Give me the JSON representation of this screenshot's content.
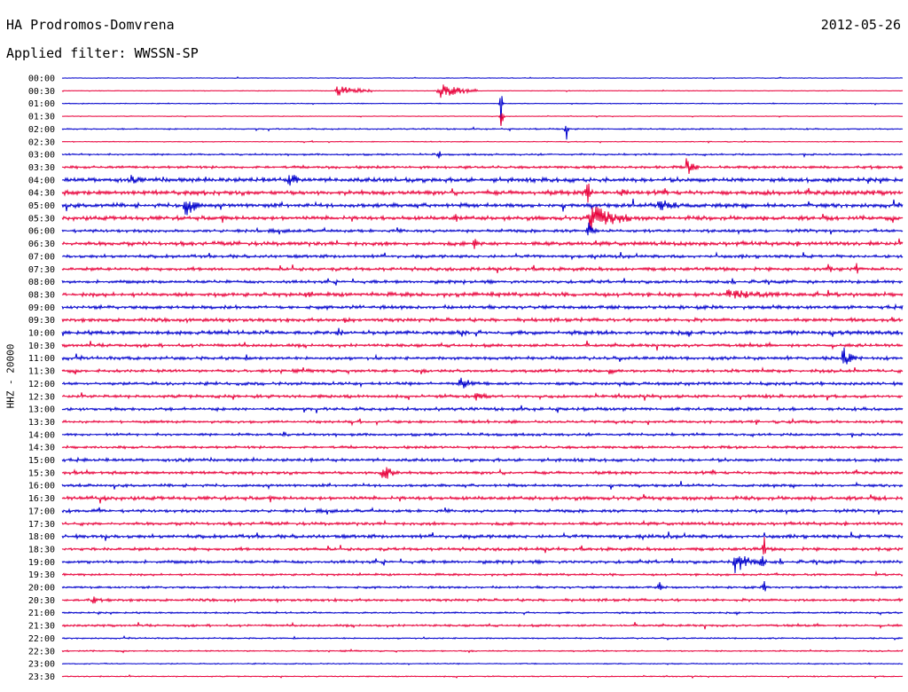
{
  "header": {
    "title": "HA Prodromos-Domvrena",
    "date": "2012-05-26",
    "filter": "Applied filter: WWSSN-SP"
  },
  "chart_data": {
    "type": "line",
    "title": "HA Prodromos-Domvrena",
    "subtitle": "Applied filter: WWSSN-SP",
    "ylabel": "HHZ - 20000",
    "xlabel": "",
    "grid": false,
    "colors": [
      "#0000cc",
      "#e8003a"
    ],
    "row_times": [
      "00:00",
      "00:30",
      "01:00",
      "01:30",
      "02:00",
      "02:30",
      "03:00",
      "03:30",
      "04:00",
      "04:30",
      "05:00",
      "05:30",
      "06:00",
      "06:30",
      "07:00",
      "07:30",
      "08:00",
      "08:30",
      "09:00",
      "09:30",
      "10:00",
      "10:30",
      "11:00",
      "11:30",
      "12:00",
      "12:30",
      "13:00",
      "13:30",
      "14:00",
      "14:30",
      "15:00",
      "15:30",
      "16:00",
      "16:30",
      "17:00",
      "17:30",
      "18:00",
      "18:30",
      "19:00",
      "19:30",
      "20:00",
      "20:30",
      "21:00",
      "21:30",
      "22:00",
      "22:30",
      "23:00",
      "23:30"
    ],
    "noise_level": [
      0.3,
      0.3,
      0.4,
      0.3,
      0.6,
      0.4,
      0.8,
      1.2,
      2.0,
      2.0,
      1.8,
      1.8,
      1.4,
      1.8,
      1.4,
      1.5,
      1.4,
      1.8,
      1.6,
      1.6,
      1.8,
      1.4,
      1.4,
      1.4,
      1.4,
      1.4,
      1.4,
      1.2,
      1.2,
      1.2,
      1.4,
      1.4,
      1.2,
      1.6,
      1.4,
      1.4,
      1.6,
      1.4,
      1.4,
      1.0,
      1.0,
      1.2,
      0.8,
      1.0,
      0.6,
      0.6,
      0.5,
      0.5
    ],
    "events": [
      {
        "row": 1,
        "t": 0.325,
        "amp": 8,
        "dur": 0.035
      },
      {
        "row": 1,
        "t": 0.448,
        "amp": 9,
        "dur": 0.04
      },
      {
        "row": 2,
        "t": 0.522,
        "amp": 34,
        "dur": 0.002
      },
      {
        "row": 3,
        "t": 0.522,
        "amp": 30,
        "dur": 0.002
      },
      {
        "row": 4,
        "t": 0.6,
        "amp": 14,
        "dur": 0.002
      },
      {
        "row": 6,
        "t": 0.448,
        "amp": 10,
        "dur": 0.002
      },
      {
        "row": 7,
        "t": 0.742,
        "amp": 12,
        "dur": 0.012
      },
      {
        "row": 8,
        "t": 0.27,
        "amp": 16,
        "dur": 0.01
      },
      {
        "row": 8,
        "t": 0.082,
        "amp": 6,
        "dur": 0.02
      },
      {
        "row": 9,
        "t": 0.624,
        "amp": 22,
        "dur": 0.006
      },
      {
        "row": 9,
        "t": 0.662,
        "amp": 8,
        "dur": 0.015
      },
      {
        "row": 10,
        "t": 0.145,
        "amp": 26,
        "dur": 0.012
      },
      {
        "row": 10,
        "t": 0.707,
        "amp": 8,
        "dur": 0.04
      },
      {
        "row": 11,
        "t": 0.625,
        "amp": 18,
        "dur": 0.045
      },
      {
        "row": 11,
        "t": 0.468,
        "amp": 8,
        "dur": 0.004
      },
      {
        "row": 12,
        "t": 0.625,
        "amp": 14,
        "dur": 0.008
      },
      {
        "row": 13,
        "t": 0.49,
        "amp": 12,
        "dur": 0.004
      },
      {
        "row": 15,
        "t": 0.91,
        "amp": 8,
        "dur": 0.008
      },
      {
        "row": 15,
        "t": 0.945,
        "amp": 10,
        "dur": 0.004
      },
      {
        "row": 17,
        "t": 0.79,
        "amp": 6,
        "dur": 0.09
      },
      {
        "row": 17,
        "t": 0.29,
        "amp": 8,
        "dur": 0.008
      },
      {
        "row": 17,
        "t": 0.9,
        "amp": 16,
        "dur": 0.002
      },
      {
        "row": 19,
        "t": 0.335,
        "amp": 6,
        "dur": 0.01
      },
      {
        "row": 20,
        "t": 0.327,
        "amp": 8,
        "dur": 0.008
      },
      {
        "row": 20,
        "t": 0.474,
        "amp": 6,
        "dur": 0.01
      },
      {
        "row": 22,
        "t": 0.927,
        "amp": 18,
        "dur": 0.012
      },
      {
        "row": 23,
        "t": 0.65,
        "amp": 6,
        "dur": 0.01
      },
      {
        "row": 24,
        "t": 0.472,
        "amp": 16,
        "dur": 0.012
      },
      {
        "row": 25,
        "t": 0.49,
        "amp": 6,
        "dur": 0.02
      },
      {
        "row": 28,
        "t": 0.262,
        "amp": 5,
        "dur": 0.01
      },
      {
        "row": 31,
        "t": 0.38,
        "amp": 16,
        "dur": 0.012
      },
      {
        "row": 38,
        "t": 0.8,
        "amp": 16,
        "dur": 0.02
      },
      {
        "row": 38,
        "t": 0.832,
        "amp": 14,
        "dur": 0.004
      },
      {
        "row": 37,
        "t": 0.835,
        "amp": 22,
        "dur": 0.002
      },
      {
        "row": 40,
        "t": 0.71,
        "amp": 10,
        "dur": 0.003
      },
      {
        "row": 40,
        "t": 0.835,
        "amp": 14,
        "dur": 0.002
      },
      {
        "row": 41,
        "t": 0.035,
        "amp": 6,
        "dur": 0.012
      }
    ]
  }
}
